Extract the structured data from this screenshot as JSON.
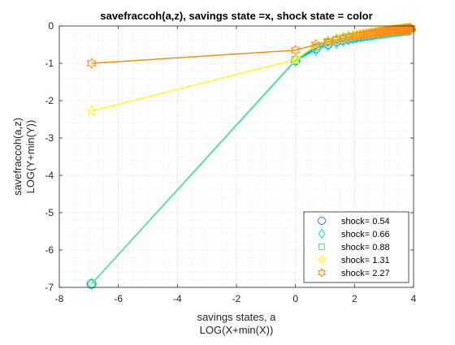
{
  "chart_data": {
    "type": "line",
    "title": "savefraccoh(a,z), savings state =x, shock state = color",
    "xlabel": [
      "savings states, a",
      "LOG(X+min(X))"
    ],
    "ylabel": [
      "savefraccoh(a,z)",
      "LOG(Y+min(Y))"
    ],
    "xlim": [
      -8,
      4
    ],
    "ylim": [
      -7,
      0
    ],
    "xticks": [
      -8,
      -6,
      -4,
      -2,
      0,
      2,
      4
    ],
    "yticks": [
      -7,
      -6,
      -5,
      -4,
      -3,
      -2,
      -1,
      0
    ],
    "grid": true,
    "minor_grid": true,
    "legend_position": "bottom-right",
    "series": [
      {
        "name": "shock=  0.54",
        "color": "#1f77d4",
        "marker": "circle",
        "x": [
          -6.91,
          0.0,
          0.69,
          1.1,
          1.39,
          1.61,
          1.79,
          1.95,
          2.08,
          2.2,
          2.3,
          2.4,
          2.48,
          2.56,
          2.64,
          2.71,
          2.77,
          2.83,
          2.89,
          2.94,
          3.0,
          3.04,
          3.09,
          3.14,
          3.18,
          3.22,
          3.26,
          3.3,
          3.33,
          3.37,
          3.4,
          3.43,
          3.47,
          3.5,
          3.53,
          3.56,
          3.58,
          3.61,
          3.64,
          3.66,
          3.69,
          3.71,
          3.74,
          3.76,
          3.78,
          3.81,
          3.83,
          3.85,
          3.87,
          3.89,
          3.91
        ],
        "y": [
          -6.91,
          -0.92,
          -0.6,
          -0.48,
          -0.41,
          -0.37,
          -0.34,
          -0.32,
          -0.3,
          -0.28,
          -0.27,
          -0.26,
          -0.25,
          -0.24,
          -0.23,
          -0.22,
          -0.21,
          -0.2,
          -0.2,
          -0.19,
          -0.18,
          -0.18,
          -0.17,
          -0.17,
          -0.16,
          -0.16,
          -0.15,
          -0.15,
          -0.14,
          -0.14,
          -0.14,
          -0.13,
          -0.13,
          -0.13,
          -0.12,
          -0.12,
          -0.12,
          -0.12,
          -0.11,
          -0.11,
          -0.11,
          -0.11,
          -0.1,
          -0.1,
          -0.1,
          -0.1,
          -0.1,
          -0.09,
          -0.09,
          -0.09,
          -0.09
        ]
      },
      {
        "name": "shock=  0.66",
        "color": "#00e5ee",
        "marker": "diamond",
        "x": [
          -6.91,
          0.0,
          0.69,
          1.1,
          1.39,
          1.61,
          1.79,
          1.95,
          2.08,
          2.2,
          2.3,
          2.4,
          2.48,
          2.56,
          2.64,
          2.71,
          2.77,
          2.83,
          2.89,
          2.94,
          3.0,
          3.04,
          3.09,
          3.14,
          3.18,
          3.22,
          3.26,
          3.3,
          3.33,
          3.37,
          3.4,
          3.43,
          3.47,
          3.5,
          3.53,
          3.56,
          3.58,
          3.61,
          3.64,
          3.66,
          3.69,
          3.71,
          3.74,
          3.76,
          3.78,
          3.81,
          3.83,
          3.85,
          3.87,
          3.89,
          3.91
        ],
        "y": [
          -6.91,
          -0.93,
          -0.65,
          -0.52,
          -0.45,
          -0.4,
          -0.36,
          -0.33,
          -0.31,
          -0.29,
          -0.27,
          -0.26,
          -0.25,
          -0.24,
          -0.23,
          -0.22,
          -0.21,
          -0.2,
          -0.2,
          -0.19,
          -0.18,
          -0.18,
          -0.17,
          -0.17,
          -0.16,
          -0.16,
          -0.15,
          -0.15,
          -0.14,
          -0.14,
          -0.14,
          -0.13,
          -0.13,
          -0.13,
          -0.12,
          -0.12,
          -0.12,
          -0.12,
          -0.11,
          -0.11,
          -0.11,
          -0.11,
          -0.1,
          -0.1,
          -0.1,
          -0.1,
          -0.1,
          -0.09,
          -0.09,
          -0.09,
          -0.09
        ]
      },
      {
        "name": "shock=  0.88",
        "color": "#66e08a",
        "marker": "square",
        "x": [
          -6.91,
          0.0,
          0.69,
          1.1,
          1.39,
          1.61,
          1.79,
          1.95,
          2.08,
          2.2,
          2.3,
          2.4,
          2.48,
          2.56,
          2.64,
          2.71,
          2.77,
          2.83,
          2.89,
          2.94,
          3.0,
          3.04,
          3.09,
          3.14,
          3.18,
          3.22,
          3.26,
          3.3,
          3.33,
          3.37,
          3.4,
          3.43,
          3.47,
          3.5,
          3.53,
          3.56,
          3.58,
          3.61,
          3.64,
          3.66,
          3.69,
          3.71,
          3.74,
          3.76,
          3.78,
          3.81,
          3.83,
          3.85,
          3.87,
          3.89,
          3.91
        ],
        "y": [
          -6.91,
          -0.91,
          -0.55,
          -0.43,
          -0.37,
          -0.33,
          -0.3,
          -0.28,
          -0.26,
          -0.25,
          -0.24,
          -0.23,
          -0.22,
          -0.21,
          -0.2,
          -0.19,
          -0.19,
          -0.18,
          -0.17,
          -0.17,
          -0.16,
          -0.16,
          -0.15,
          -0.15,
          -0.14,
          -0.14,
          -0.14,
          -0.13,
          -0.13,
          -0.13,
          -0.12,
          -0.12,
          -0.12,
          -0.12,
          -0.11,
          -0.11,
          -0.11,
          -0.11,
          -0.1,
          -0.1,
          -0.1,
          -0.1,
          -0.1,
          -0.09,
          -0.09,
          -0.09,
          -0.09,
          -0.09,
          -0.09,
          -0.08,
          -0.08
        ]
      },
      {
        "name": "shock=  1.31",
        "color": "#ffff1a",
        "marker": "pentagram",
        "x": [
          -6.91,
          0.0,
          0.69,
          1.1,
          1.39,
          1.61,
          1.79,
          1.95,
          2.08,
          2.2,
          2.3,
          2.4,
          2.48,
          2.56,
          2.64,
          2.71,
          2.77,
          2.83,
          2.89,
          2.94,
          3.0,
          3.04,
          3.09,
          3.14,
          3.18,
          3.22,
          3.26,
          3.3,
          3.33,
          3.37,
          3.4,
          3.43,
          3.47,
          3.5,
          3.53,
          3.56,
          3.58,
          3.61,
          3.64,
          3.66,
          3.69,
          3.71,
          3.74,
          3.76,
          3.78,
          3.81,
          3.83,
          3.85,
          3.87,
          3.89,
          3.91
        ],
        "y": [
          -2.28,
          -0.9,
          -0.5,
          -0.4,
          -0.34,
          -0.3,
          -0.27,
          -0.25,
          -0.23,
          -0.22,
          -0.21,
          -0.2,
          -0.19,
          -0.18,
          -0.17,
          -0.17,
          -0.16,
          -0.16,
          -0.15,
          -0.15,
          -0.14,
          -0.14,
          -0.13,
          -0.13,
          -0.13,
          -0.12,
          -0.12,
          -0.12,
          -0.11,
          -0.11,
          -0.11,
          -0.11,
          -0.1,
          -0.1,
          -0.1,
          -0.1,
          -0.09,
          -0.09,
          -0.09,
          -0.09,
          -0.09,
          -0.09,
          -0.08,
          -0.08,
          -0.08,
          -0.08,
          -0.08,
          -0.08,
          -0.08,
          -0.07,
          -0.07
        ]
      },
      {
        "name": "shock=  2.27",
        "color": "#ff8c1a",
        "marker": "hexagram",
        "x": [
          -6.91,
          0.0,
          0.69,
          1.1,
          1.39,
          1.61,
          1.79,
          1.95,
          2.08,
          2.2,
          2.3,
          2.4,
          2.48,
          2.56,
          2.64,
          2.71,
          2.77,
          2.83,
          2.89,
          2.94,
          3.0,
          3.04,
          3.09,
          3.14,
          3.18,
          3.22,
          3.26,
          3.3,
          3.33,
          3.37,
          3.4,
          3.43,
          3.47,
          3.5,
          3.53,
          3.56,
          3.58,
          3.61,
          3.64,
          3.66,
          3.69,
          3.71,
          3.74,
          3.76,
          3.78,
          3.81,
          3.83,
          3.85,
          3.87,
          3.89,
          3.91
        ],
        "y": [
          -1.0,
          -0.65,
          -0.5,
          -0.42,
          -0.37,
          -0.33,
          -0.3,
          -0.28,
          -0.26,
          -0.24,
          -0.23,
          -0.22,
          -0.21,
          -0.2,
          -0.19,
          -0.18,
          -0.18,
          -0.17,
          -0.16,
          -0.16,
          -0.15,
          -0.15,
          -0.14,
          -0.14,
          -0.13,
          -0.13,
          -0.13,
          -0.12,
          -0.12,
          -0.12,
          -0.11,
          -0.11,
          -0.11,
          -0.11,
          -0.1,
          -0.1,
          -0.1,
          -0.1,
          -0.09,
          -0.09,
          -0.09,
          -0.09,
          -0.09,
          -0.08,
          -0.08,
          -0.08,
          -0.08,
          -0.08,
          -0.08,
          -0.07,
          -0.07
        ]
      }
    ]
  }
}
